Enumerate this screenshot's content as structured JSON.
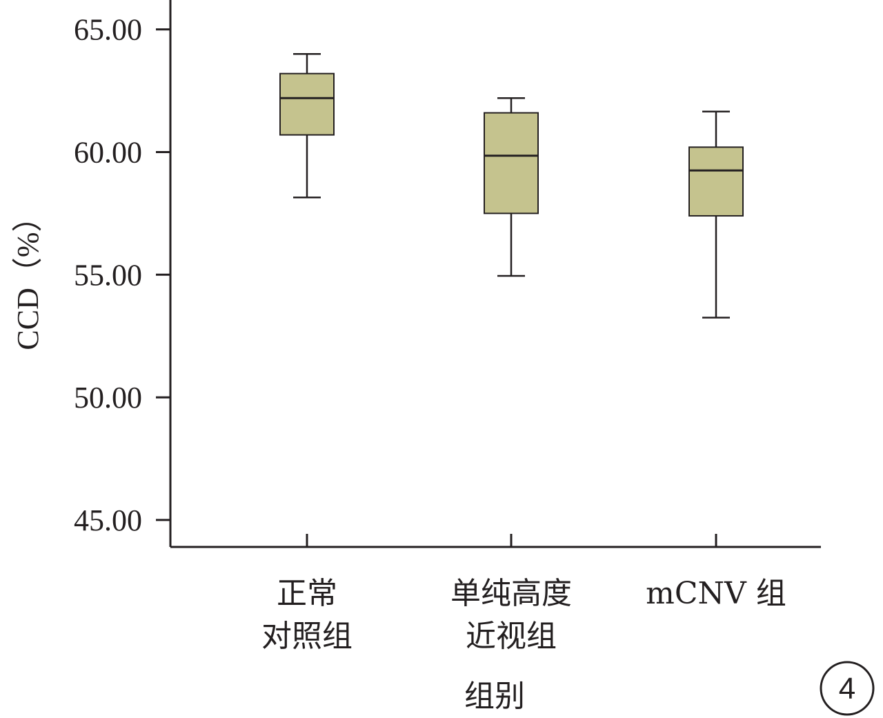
{
  "chart_data": {
    "type": "boxplot",
    "title": "",
    "xlabel": "组别",
    "ylabel": "CCD（%）",
    "ylim": [
      43.9,
      66.2
    ],
    "yticks": [
      45,
      50,
      55,
      60,
      65
    ],
    "ytick_labels": [
      "45.00",
      "50.00",
      "55.00",
      "60.00",
      "65.00"
    ],
    "categories": [
      {
        "lines": [
          "正常",
          "对照组"
        ]
      },
      {
        "lines": [
          "单纯高度",
          "近视组"
        ]
      },
      {
        "lines": [
          "mCNV 组"
        ]
      }
    ],
    "boxes": [
      {
        "min": 58.15,
        "q1": 60.7,
        "median": 62.2,
        "q3": 63.2,
        "max": 64.0
      },
      {
        "min": 54.95,
        "q1": 57.5,
        "median": 59.85,
        "q3": 61.6,
        "max": 62.2
      },
      {
        "min": 53.25,
        "q1": 57.4,
        "median": 59.25,
        "q3": 60.2,
        "max": 61.65
      }
    ],
    "box_color": "#c5c38e",
    "line_color": "#231f20",
    "grid": false
  },
  "panel_badge": "4"
}
